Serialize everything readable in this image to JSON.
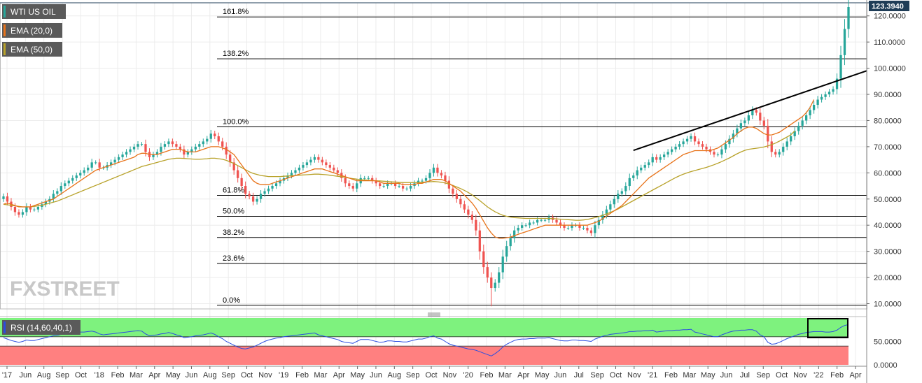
{
  "legend": {
    "symbol": "WTI US OIL",
    "ema20": "EMA (20,0)",
    "ema50": "EMA (50,0)",
    "rsi": "RSI (14,60,40,1)"
  },
  "watermark": "FXSTREET",
  "last_price_label": "123.3940",
  "colors": {
    "up_candle": "#26a69a",
    "down_candle": "#ef5350",
    "ema20": "#e8731a",
    "ema50": "#b8a22a",
    "fib_line": "#000000",
    "trend_line": "#000000",
    "rsi_line": "#2b4de0",
    "rsi_upper_zone": "#7ef27e",
    "rsi_lower_zone": "#ff8080",
    "legend_bg": "#5a5a5a",
    "price_tag_bg": "#1f3d57",
    "grid": "#ececec",
    "watermark": "#c8c8c8"
  },
  "chart_data": [
    {
      "type": "candlestick",
      "series_names": [
        "WTI US OIL",
        "EMA (20,0)",
        "EMA (50,0)"
      ],
      "ylim": [
        8,
        125
      ],
      "y_ticks": [
        10,
        20,
        30,
        40,
        50,
        60,
        70,
        80,
        90,
        100,
        110,
        120
      ],
      "y_tick_labels": [
        "10.0000",
        "20.0000",
        "30.0000",
        "40.0000",
        "50.0000",
        "60.0000",
        "70.0000",
        "80.0000",
        "90.0000",
        "100.0000",
        "110.0000",
        "120.0000"
      ],
      "x_labels": [
        "'17",
        "Jun",
        "Aug",
        "Sep",
        "Oct",
        "'18",
        "Feb",
        "Mar",
        "Apr",
        "May",
        "Jun",
        "Aug",
        "Sep",
        "Oct",
        "Nov",
        "'19",
        "Feb",
        "Mar",
        "Apr",
        "May",
        "Jun",
        "Aug",
        "Sep",
        "Oct",
        "Nov",
        "'20",
        "Feb",
        "Mar",
        "Apr",
        "May",
        "Jun",
        "Jul",
        "Sep",
        "Oct",
        "Nov",
        "'21",
        "Feb",
        "Mar",
        "May",
        "Jun",
        "Jul",
        "Sep",
        "Oct",
        "Nov",
        "'22",
        "Feb",
        "Apr"
      ],
      "closes": [
        51,
        49,
        47,
        45,
        44,
        45,
        47,
        46,
        46,
        47,
        48,
        49,
        50,
        52,
        53,
        55,
        56,
        57,
        58,
        59,
        60,
        61,
        62,
        64,
        64,
        62,
        62,
        63,
        64,
        65,
        66,
        67,
        68,
        69,
        70,
        71,
        71,
        68,
        66,
        67,
        68,
        70,
        71,
        72,
        71,
        70,
        69,
        67,
        68,
        69,
        70,
        71,
        72,
        73,
        75,
        74,
        72,
        70,
        67,
        64,
        61,
        58,
        55,
        52,
        51,
        49,
        50,
        52,
        53,
        54,
        55,
        56,
        57,
        58,
        59,
        60,
        61,
        62,
        63,
        64,
        65,
        66,
        65,
        64,
        63,
        62,
        61,
        60,
        58,
        56,
        55,
        54,
        56,
        58,
        58,
        58,
        57,
        56,
        55,
        55,
        56,
        56,
        55,
        55,
        54,
        54,
        55,
        56,
        57,
        57,
        58,
        60,
        62,
        60,
        59,
        57,
        54,
        52,
        50,
        48,
        46,
        44,
        42,
        38,
        30,
        24,
        20,
        16,
        18,
        22,
        28,
        32,
        35,
        38,
        39,
        40,
        40,
        41,
        41,
        42,
        42,
        42,
        43,
        42,
        41,
        40,
        39,
        39,
        40,
        40,
        39,
        39,
        38,
        37,
        40,
        42,
        44,
        46,
        48,
        50,
        52,
        53,
        55,
        58,
        59,
        61,
        62,
        63,
        64,
        66,
        65,
        66,
        67,
        68,
        69,
        70,
        71,
        72,
        73,
        74,
        72,
        71,
        70,
        69,
        68,
        67,
        67,
        69,
        71,
        73,
        75,
        77,
        79,
        80,
        82,
        84,
        83,
        80,
        78,
        72,
        68,
        67,
        68,
        70,
        72,
        74,
        76,
        78,
        80,
        82,
        84,
        86,
        88,
        89,
        90,
        91,
        92,
        96,
        105,
        115,
        123.4
      ],
      "ema20": [
        48,
        48.5,
        48,
        47.5,
        47,
        47,
        47,
        47,
        47.5,
        48,
        48.5,
        49,
        49.5,
        50,
        51,
        52,
        53,
        54,
        55,
        56,
        57,
        58,
        59,
        60,
        61,
        61.5,
        62,
        62.5,
        63,
        63.5,
        64,
        64.5,
        65,
        65.5,
        66,
        67,
        67.5,
        67.5,
        67,
        67,
        67,
        67.5,
        68,
        68.5,
        69,
        69,
        69,
        68.5,
        68,
        68,
        68,
        68.5,
        69,
        69.5,
        70,
        70,
        70,
        69.5,
        69,
        68,
        67,
        65,
        63,
        61,
        59,
        57,
        56,
        55.5,
        55.5,
        55.5,
        56,
        56.5,
        57,
        57.5,
        58,
        58.5,
        59,
        59.5,
        60,
        60.5,
        61,
        61.5,
        61.5,
        61.5,
        61,
        60.5,
        60,
        59.5,
        59,
        58.5,
        58,
        57.5,
        57,
        57,
        57,
        57,
        57,
        57,
        56.5,
        56,
        56,
        56,
        56,
        56,
        55.5,
        55.5,
        55.5,
        55.5,
        56,
        56,
        56.5,
        57,
        57.5,
        57.5,
        57.5,
        57,
        56,
        55,
        54,
        53,
        51.5,
        50,
        48.5,
        46.5,
        44,
        41.5,
        39,
        37,
        35.5,
        35,
        35,
        35.2,
        35.5,
        36,
        36.5,
        37,
        37.5,
        38,
        38.5,
        39,
        39.5,
        40,
        40,
        40,
        40,
        40,
        40,
        40,
        40,
        40,
        40,
        40,
        40,
        40.5,
        41,
        41.5,
        42.5,
        43.5,
        44.5,
        45.5,
        46.5,
        47.5,
        49,
        50.5,
        52,
        53.5,
        55,
        56.5,
        58,
        59,
        60,
        61,
        62,
        63,
        64,
        65,
        66,
        67,
        67.5,
        68,
        68.5,
        68.5,
        68.5,
        68.5,
        68.5,
        69,
        69.5,
        70.5,
        71.5,
        72.5,
        73.5,
        75,
        76,
        77,
        77.5,
        77.5,
        77,
        76,
        75,
        74.5,
        74.5,
        75,
        75.5,
        76.5,
        77.5,
        78.5,
        79.5,
        80.5,
        81.5,
        83,
        85,
        88
      ],
      "ema50": [
        48,
        47.8,
        47.6,
        47.4,
        47.2,
        47,
        47,
        47,
        47.2,
        47.4,
        47.6,
        48,
        48.4,
        48.8,
        49.2,
        49.8,
        50.4,
        51,
        51.6,
        52.2,
        52.8,
        53.4,
        54,
        54.6,
        55.2,
        55.8,
        56.4,
        57,
        57.6,
        58.2,
        58.8,
        59.4,
        60,
        60.6,
        61.2,
        61.8,
        62.4,
        62.8,
        63.2,
        63.6,
        64,
        64.4,
        64.8,
        65.2,
        65.4,
        65.6,
        65.6,
        65.5,
        65.4,
        65.3,
        65.2,
        65.2,
        65.3,
        65.4,
        65.6,
        65.6,
        65.4,
        65.2,
        64.8,
        64.2,
        63.6,
        62.8,
        62,
        61.2,
        60.4,
        59.8,
        59.4,
        59,
        58.8,
        58.6,
        58.6,
        58.6,
        58.6,
        58.7,
        58.8,
        58.9,
        59,
        59.1,
        59.2,
        59.3,
        59.4,
        59.5,
        59.5,
        59.4,
        59.3,
        59.1,
        58.9,
        58.7,
        58.5,
        58.3,
        58,
        57.8,
        57.6,
        57.4,
        57.3,
        57.2,
        57.1,
        57,
        56.9,
        56.8,
        56.7,
        56.6,
        56.5,
        56.4,
        56.3,
        56.3,
        56.3,
        56.3,
        56.3,
        56.4,
        56.5,
        56.6,
        56.7,
        56.6,
        56.4,
        56.1,
        55.7,
        55.2,
        54.6,
        54,
        53.3,
        52.5,
        51.6,
        50.5,
        49.4,
        48.2,
        47,
        46,
        45.1,
        44.4,
        43.8,
        43.4,
        43.1,
        42.9,
        42.8,
        42.7,
        42.6,
        42.6,
        42.6,
        42.6,
        42.6,
        42.6,
        42.6,
        42.5,
        42.4,
        42.3,
        42.2,
        42.1,
        42,
        41.9,
        41.9,
        42,
        42.2,
        42.5,
        42.9,
        43.3,
        43.8,
        44.3,
        44.9,
        45.5,
        46.2,
        47,
        47.8,
        48.6,
        49.4,
        50.2,
        51,
        51.8,
        52.6,
        53.4,
        54.2,
        55,
        55.8,
        56.6,
        57.4,
        58.2,
        58.9,
        59.5,
        60,
        60.5,
        60.9,
        61.3,
        61.7,
        62.1,
        62.6,
        63.1,
        63.7,
        64.3,
        65,
        65.7,
        66.5,
        67.3,
        68,
        68.6,
        69,
        69.2,
        69.4,
        69.6,
        69.9,
        70.3,
        70.8,
        71.4,
        72.1,
        72.9,
        73.7,
        74.6,
        76
      ],
      "fibonacci": [
        {
          "label": "161.8%",
          "value": 119.6
        },
        {
          "label": "138.2%",
          "value": 103.6
        },
        {
          "label": "100.0%",
          "value": 77.6
        },
        {
          "label": "61.8%",
          "value": 51.4
        },
        {
          "label": "50.0%",
          "value": 43.4
        },
        {
          "label": "38.2%",
          "value": 35.3
        },
        {
          "label": "23.6%",
          "value": 25.4
        },
        {
          "label": "0.0%",
          "value": 9.4
        }
      ],
      "trendline": [
        {
          "x_index": 164,
          "y": 68.6
        },
        {
          "x_index": 221,
          "y": 97.5
        }
      ],
      "last_price": 123.394,
      "low_extreme": {
        "x_index": 127,
        "y": 9.0
      }
    },
    {
      "type": "line",
      "series_names": [
        "RSI (14,60,40,1)"
      ],
      "ylim": [
        0,
        100
      ],
      "y_ticks": [
        0,
        50
      ],
      "y_tick_labels": [
        "0.0000",
        "50.0000"
      ],
      "upper_level": 60,
      "lower_level": 40,
      "values": [
        58,
        55,
        52,
        50,
        48,
        50,
        53,
        52,
        52,
        54,
        56,
        58,
        60,
        62,
        63,
        65,
        66,
        67,
        68,
        69,
        70,
        70,
        71,
        72,
        70,
        66,
        64,
        65,
        66,
        67,
        68,
        69,
        70,
        71,
        72,
        73,
        72,
        66,
        62,
        63,
        64,
        66,
        67,
        69,
        67,
        64,
        62,
        58,
        59,
        60,
        62,
        63,
        64,
        66,
        68,
        65,
        60,
        56,
        50,
        46,
        42,
        38,
        35,
        34,
        36,
        38,
        42,
        46,
        50,
        53,
        55,
        57,
        58,
        60,
        61,
        62,
        63,
        64,
        65,
        66,
        67,
        68,
        64,
        62,
        60,
        58,
        56,
        54,
        50,
        48,
        47,
        46,
        50,
        54,
        54,
        54,
        52,
        50,
        48,
        49,
        51,
        51,
        50,
        50,
        49,
        49,
        51,
        53,
        55,
        55,
        57,
        60,
        62,
        57,
        55,
        50,
        45,
        42,
        40,
        38,
        36,
        34,
        33,
        31,
        28,
        25,
        22,
        19,
        24,
        30,
        38,
        44,
        48,
        52,
        54,
        55,
        55,
        56,
        56,
        57,
        57,
        57,
        58,
        56,
        54,
        52,
        51,
        51,
        53,
        53,
        52,
        52,
        51,
        50,
        55,
        58,
        61,
        63,
        65,
        66,
        67,
        68,
        69,
        71,
        71,
        72,
        72,
        73,
        73,
        74,
        70,
        71,
        72,
        73,
        73,
        74,
        74,
        75,
        75,
        76,
        70,
        68,
        66,
        64,
        62,
        60,
        60,
        64,
        67,
        70,
        72,
        73,
        74,
        74,
        75,
        75,
        72,
        64,
        60,
        48,
        44,
        45,
        48,
        52,
        56,
        59,
        62,
        65,
        67,
        69,
        70,
        71,
        71,
        71,
        70,
        70,
        71,
        74,
        80,
        84,
        86
      ]
    }
  ]
}
